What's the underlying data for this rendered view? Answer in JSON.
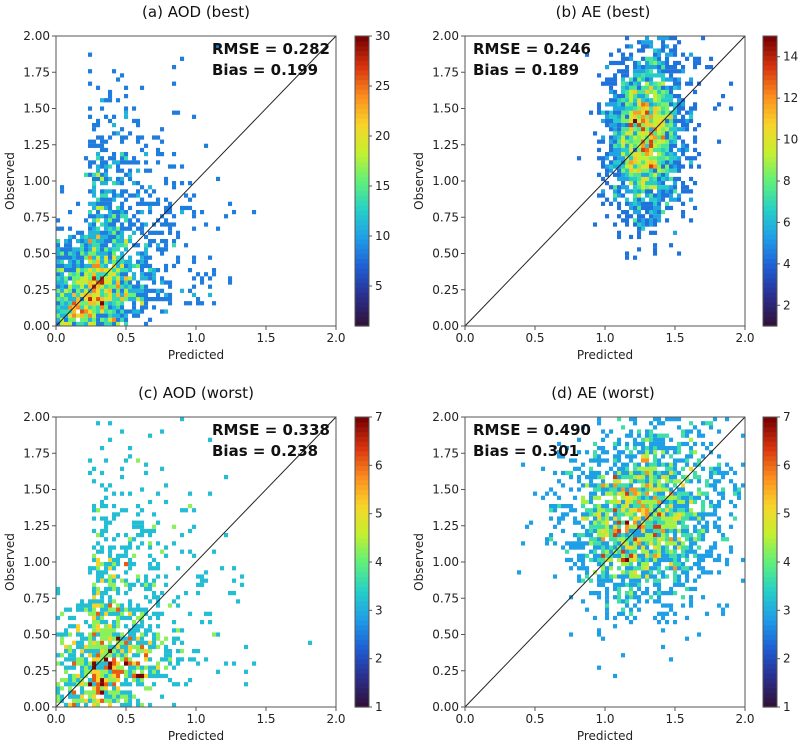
{
  "chart_data": [
    {
      "type": "heatmap",
      "title": "(a) AOD (best)",
      "xlabel": "Predicted",
      "ylabel": "Observed",
      "xlim": [
        0,
        2
      ],
      "ylim": [
        0,
        2
      ],
      "xticks": [
        "0.0",
        "0.5",
        "1.0",
        "1.5",
        "2.0"
      ],
      "yticks": [
        "0.00",
        "0.25",
        "0.50",
        "0.75",
        "1.00",
        "1.25",
        "1.50",
        "1.75",
        "2.00"
      ],
      "stats": [
        "RMSE = 0.282",
        "Bias = 0.199"
      ],
      "colorbar": {
        "min": 1,
        "max": 30,
        "ticks": [
          "5",
          "10",
          "15",
          "20",
          "25",
          "30"
        ]
      },
      "density": {
        "cx": 0.22,
        "cy": 0.14,
        "sx": 0.18,
        "sy": 0.25,
        "peak": 30,
        "count": 2600,
        "tail": 0.35
      }
    },
    {
      "type": "heatmap",
      "title": "(b) AE (best)",
      "xlabel": "Predicted",
      "ylabel": "Observed",
      "xlim": [
        0,
        2
      ],
      "ylim": [
        0,
        2
      ],
      "xticks": [
        "0.0",
        "0.5",
        "1.0",
        "1.5",
        "2.0"
      ],
      "yticks": [
        "0.00",
        "0.25",
        "0.50",
        "0.75",
        "1.00",
        "1.25",
        "1.50",
        "1.75",
        "2.00"
      ],
      "stats": [
        "RMSE = 0.246",
        "Bias = 0.189"
      ],
      "colorbar": {
        "min": 1,
        "max": 15,
        "ticks": [
          "2",
          "4",
          "6",
          "8",
          "10",
          "12",
          "14"
        ]
      },
      "density": {
        "cx": 1.28,
        "cy": 1.3,
        "sx": 0.13,
        "sy": 0.27,
        "peak": 15,
        "count": 2400,
        "tail": 0.1
      }
    },
    {
      "type": "heatmap",
      "title": "(c) AOD (worst)",
      "xlabel": "Predicted",
      "ylabel": "Observed",
      "xlim": [
        0,
        2
      ],
      "ylim": [
        0,
        2
      ],
      "xticks": [
        "0.0",
        "0.5",
        "1.0",
        "1.5",
        "2.0"
      ],
      "yticks": [
        "0.00",
        "0.25",
        "0.50",
        "0.75",
        "1.00",
        "1.25",
        "1.50",
        "1.75",
        "2.00"
      ],
      "stats": [
        "RMSE = 0.338",
        "Bias = 0.238"
      ],
      "colorbar": {
        "min": 1,
        "max": 7,
        "ticks": [
          "1",
          "2",
          "3",
          "4",
          "5",
          "6",
          "7"
        ]
      },
      "density": {
        "cx": 0.25,
        "cy": 0.15,
        "sx": 0.22,
        "sy": 0.3,
        "peak": 7,
        "count": 1500,
        "tail": 0.45
      }
    },
    {
      "type": "heatmap",
      "title": "(d) AE (worst)",
      "xlabel": "Predicted",
      "ylabel": "Observed",
      "xlim": [
        0,
        2
      ],
      "ylim": [
        0,
        2
      ],
      "xticks": [
        "0.0",
        "0.5",
        "1.0",
        "1.5",
        "2.0"
      ],
      "yticks": [
        "0.00",
        "0.25",
        "0.50",
        "0.75",
        "1.00",
        "1.25",
        "1.50",
        "1.75",
        "2.00"
      ],
      "stats": [
        "RMSE = 0.490",
        "Bias = 0.301"
      ],
      "colorbar": {
        "min": 1,
        "max": 7,
        "ticks": [
          "1",
          "2",
          "3",
          "4",
          "5",
          "6",
          "7"
        ]
      },
      "density": {
        "cx": 1.25,
        "cy": 1.28,
        "sx": 0.26,
        "sy": 0.3,
        "peak": 7,
        "count": 2200,
        "tail": 0.12
      }
    }
  ],
  "colors": {
    "colormap": [
      "#30123b",
      "#2a2f8f",
      "#1f5fd3",
      "#1f9ce8",
      "#26d0c8",
      "#5ff07a",
      "#c5f02e",
      "#f8d42a",
      "#fb8c1f",
      "#d8350f",
      "#7a0403"
    ]
  }
}
